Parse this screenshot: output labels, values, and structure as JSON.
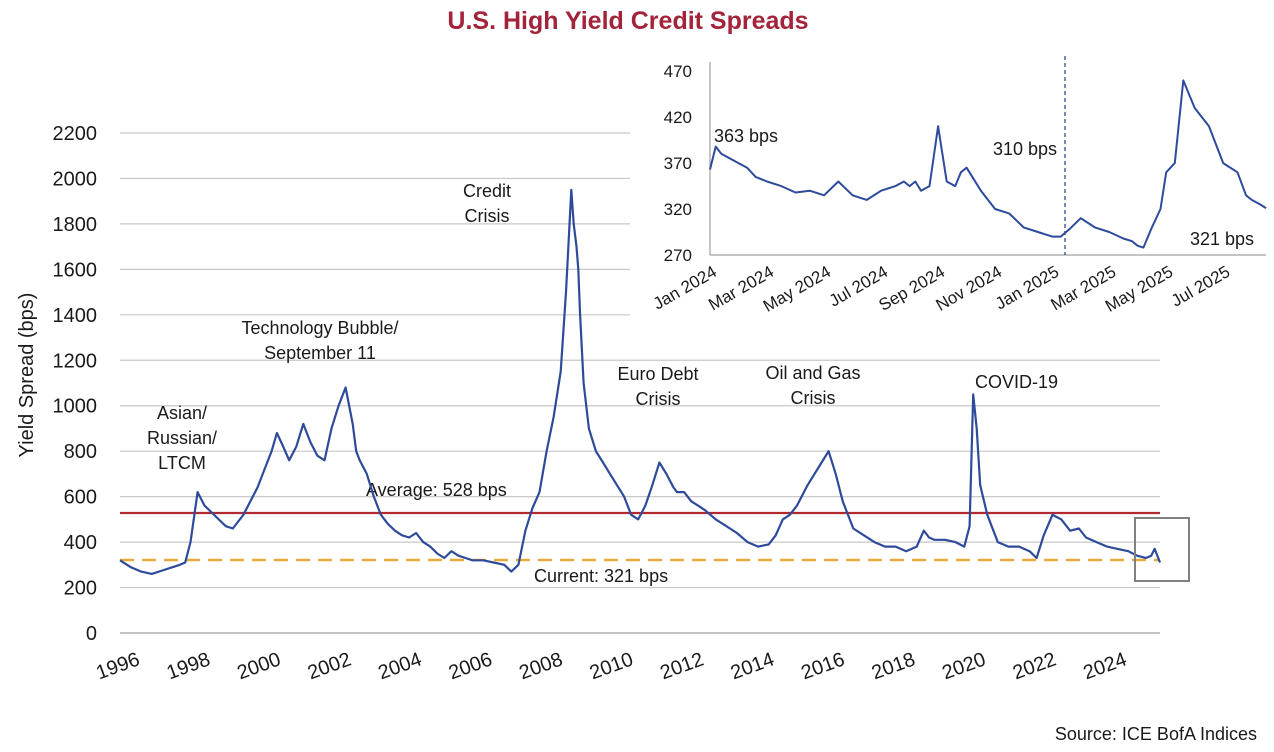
{
  "chart_data": [
    {
      "type": "line",
      "title": "U.S. High Yield Credit Spreads",
      "ylabel": "Yield Spread (bps)",
      "xlabel": "",
      "ylim": [
        0,
        2200
      ],
      "xlim": [
        1996,
        2025.5
      ],
      "y_ticks": [
        "0",
        "200",
        "400",
        "600",
        "800",
        "1000",
        "1200",
        "1400",
        "1600",
        "1800",
        "2000",
        "2200"
      ],
      "x_ticks": [
        "1996",
        "1998",
        "2000",
        "2002",
        "2004",
        "2006",
        "2008",
        "2010",
        "2012",
        "2014",
        "2016",
        "2018",
        "2020",
        "2022",
        "2024"
      ],
      "grid": "horizontal",
      "colors": {
        "series": "#2e4b9b",
        "average": "#b02a30",
        "current": "#e8a93b",
        "title": "#a3243a",
        "highlight_box": "#808080"
      },
      "series": [
        {
          "x": [
            1996.0,
            1996.3,
            1996.6,
            1996.9,
            1997.2,
            1997.5,
            1997.7,
            1997.85,
            1998.0,
            1998.2,
            1998.4,
            1998.6,
            1998.8,
            1999.0,
            1999.2,
            1999.5,
            1999.7,
            1999.9,
            2000.1,
            2000.3,
            2000.45,
            2000.6,
            2000.8,
            2001.0,
            2001.2,
            2001.4,
            2001.6,
            2001.8,
            2002.0,
            2002.2,
            2002.4,
            2002.6,
            2002.7,
            2002.8,
            2003.0,
            2003.2,
            2003.4,
            2003.6,
            2003.8,
            2004.0,
            2004.2,
            2004.4,
            2004.6,
            2004.8,
            2005.0,
            2005.2,
            2005.4,
            2005.6,
            2005.8,
            2006.0,
            2006.3,
            2006.6,
            2006.9,
            2007.1,
            2007.3,
            2007.5,
            2007.7,
            2007.9,
            2008.1,
            2008.3,
            2008.5,
            2008.65,
            2008.8,
            2008.87,
            2008.95,
            2009.0,
            2009.05,
            2009.15,
            2009.3,
            2009.5,
            2009.7,
            2009.9,
            2010.1,
            2010.3,
            2010.5,
            2010.7,
            2010.9,
            2011.1,
            2011.3,
            2011.5,
            2011.7,
            2011.8,
            2012.0,
            2012.2,
            2012.4,
            2012.6,
            2012.9,
            2013.2,
            2013.5,
            2013.8,
            2014.1,
            2014.4,
            2014.6,
            2014.8,
            2015.0,
            2015.2,
            2015.5,
            2015.7,
            2015.9,
            2016.1,
            2016.3,
            2016.5,
            2016.8,
            2017.1,
            2017.4,
            2017.7,
            2018.0,
            2018.3,
            2018.6,
            2018.8,
            2018.95,
            2019.1,
            2019.4,
            2019.7,
            2019.95,
            2020.1,
            2020.2,
            2020.3,
            2020.4,
            2020.6,
            2020.9,
            2021.2,
            2021.5,
            2021.8,
            2022.0,
            2022.2,
            2022.45,
            2022.7,
            2022.95,
            2023.2,
            2023.4,
            2023.7,
            2024.0,
            2024.3,
            2024.6,
            2024.85,
            2025.1,
            2025.25,
            2025.35,
            2025.5
          ],
          "y": [
            320,
            290,
            270,
            260,
            275,
            290,
            300,
            310,
            400,
            620,
            560,
            530,
            500,
            470,
            460,
            520,
            580,
            640,
            720,
            800,
            880,
            830,
            760,
            820,
            920,
            840,
            780,
            760,
            900,
            1000,
            1080,
            920,
            800,
            760,
            700,
            600,
            520,
            480,
            450,
            430,
            420,
            440,
            400,
            380,
            350,
            330,
            360,
            340,
            330,
            320,
            320,
            310,
            300,
            270,
            300,
            450,
            550,
            620,
            800,
            950,
            1150,
            1500,
            1950,
            1800,
            1700,
            1600,
            1400,
            1100,
            900,
            800,
            750,
            700,
            650,
            600,
            520,
            500,
            560,
            650,
            750,
            700,
            640,
            620,
            620,
            580,
            560,
            540,
            500,
            470,
            440,
            400,
            380,
            390,
            430,
            500,
            520,
            560,
            650,
            700,
            750,
            800,
            700,
            580,
            460,
            430,
            400,
            380,
            380,
            360,
            380,
            450,
            420,
            410,
            410,
            400,
            380,
            470,
            1050,
            900,
            650,
            520,
            400,
            380,
            380,
            360,
            330,
            430,
            520,
            500,
            450,
            460,
            420,
            400,
            380,
            370,
            360,
            340,
            330,
            340,
            370,
            310
          ]
        }
      ],
      "annotations": [
        {
          "label": "Asian/ Russian/ LTCM",
          "lines": [
            "Asian/",
            "Russian/",
            "LTCM"
          ]
        },
        {
          "label": "Technology Bubble/ September 11",
          "lines": [
            "Technology Bubble/",
            "September 11"
          ]
        },
        {
          "label": "Credit Crisis",
          "lines": [
            "Credit",
            "Crisis"
          ]
        },
        {
          "label": "Euro Debt Crisis",
          "lines": [
            "Euro Debt",
            "Crisis"
          ]
        },
        {
          "label": "Oil and Gas Crisis",
          "lines": [
            "Oil and Gas",
            "Crisis"
          ]
        },
        {
          "label": "COVID-19",
          "lines": [
            "COVID-19"
          ]
        }
      ],
      "reference_lines": [
        {
          "name": "Average",
          "value": 528,
          "label": "Average: 528 bps",
          "style": "solid"
        },
        {
          "name": "Current",
          "value": 321,
          "label": "Current: 321 bps",
          "style": "dashed"
        }
      ],
      "source": "Source: ICE BofA Indices"
    },
    {
      "type": "line",
      "title": "",
      "ylim": [
        270,
        480
      ],
      "y_ticks": [
        "270",
        "320",
        "370",
        "420",
        "470"
      ],
      "x_ticks": [
        "Jan 2024",
        "Mar 2024",
        "May 2024",
        "Jul 2024",
        "Sep 2024",
        "Nov 2024",
        "Jan 2025",
        "Mar 2025",
        "May 2025",
        "Jul 2025"
      ],
      "xlim": [
        0,
        19.5
      ],
      "grid": "none",
      "series": [
        {
          "x": [
            0.0,
            0.2,
            0.4,
            0.7,
            1.0,
            1.3,
            1.6,
            2.0,
            2.5,
            3.0,
            3.5,
            4.0,
            4.5,
            5.0,
            5.5,
            6.0,
            6.5,
            6.8,
            7.0,
            7.2,
            7.4,
            7.7,
            8.0,
            8.3,
            8.6,
            8.8,
            9.0,
            9.5,
            10.0,
            10.5,
            11.0,
            11.5,
            12.0,
            12.3,
            12.6,
            13.0,
            13.5,
            14.0,
            14.5,
            14.8,
            15.0,
            15.2,
            15.5,
            15.8,
            16.0,
            16.3,
            16.6,
            17.0,
            17.5,
            18.0,
            18.5,
            18.8,
            19.0,
            19.3,
            19.5
          ],
          "y": [
            363,
            388,
            380,
            375,
            370,
            365,
            355,
            350,
            345,
            338,
            340,
            335,
            350,
            335,
            330,
            340,
            345,
            350,
            345,
            350,
            340,
            345,
            410,
            350,
            345,
            360,
            365,
            340,
            320,
            315,
            300,
            295,
            290,
            290,
            298,
            310,
            300,
            295,
            288,
            285,
            280,
            278,
            300,
            320,
            360,
            370,
            460,
            430,
            410,
            370,
            360,
            335,
            330,
            325,
            321
          ]
        }
      ],
      "annotations": [
        {
          "label": "363 bps"
        },
        {
          "label": "310 bps"
        },
        {
          "label": "321 bps"
        }
      ]
    }
  ]
}
